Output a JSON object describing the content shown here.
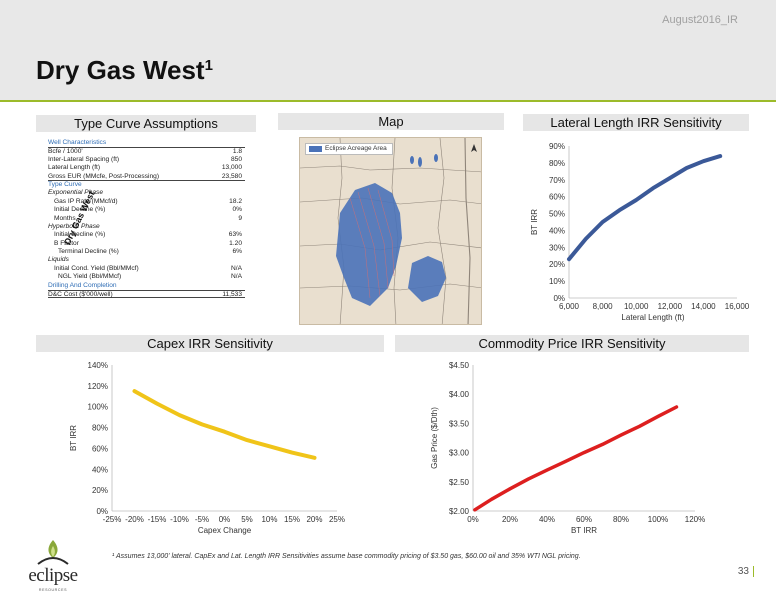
{
  "header": {
    "tag": "August2016_IR",
    "title": "Dry Gas West",
    "title_sup": "1"
  },
  "panels": {
    "assumptions": "Type Curve Assumptions",
    "map": "Map",
    "lateral": "Lateral Length IRR Sensitivity",
    "capex": "Capex IRR Sensitivity",
    "commodity": "Commodity Price IRR Sensitivity"
  },
  "table": [
    {
      "label": "Well Characteristics",
      "value": "",
      "style": "sec"
    },
    {
      "label": "Bcfe / 1000'",
      "value": "1.8",
      "style": "topline"
    },
    {
      "label": "Inter-Lateral Spacing (ft)",
      "value": "850",
      "style": ""
    },
    {
      "label": "Lateral Length (ft)",
      "value": "13,000",
      "style": ""
    },
    {
      "label": "Gross EUR (MMcfe, Post-Processing)",
      "value": "23,580",
      "style": "line"
    },
    {
      "label": "Type Curve",
      "value": "",
      "style": "sec"
    },
    {
      "label": "Exponential Phase",
      "value": "",
      "style": "sub"
    },
    {
      "label": "Gas IP Rate (MMcf/d)",
      "value": "18.2",
      "style": "indent"
    },
    {
      "label": "Initial Decline (%)",
      "value": "0%",
      "style": "indent"
    },
    {
      "label": "Months",
      "value": "9",
      "style": "indent"
    },
    {
      "label": "Hyperbolic Phase",
      "value": "",
      "style": "sub"
    },
    {
      "label": "Initial Decline (%)",
      "value": "63%",
      "style": "indent"
    },
    {
      "label": "B Factor",
      "value": "1.20",
      "style": "indent"
    },
    {
      "label": "Terminal Decline (%)",
      "value": "6%",
      "style": "indent2"
    },
    {
      "label": "Liquids",
      "value": "",
      "style": "sub"
    },
    {
      "label": "Initial Cond. Yield (Bbl/MMcf)",
      "value": "N/A",
      "style": "indent"
    },
    {
      "label": "NGL Yield (Bbl/MMcf)",
      "value": "N/A",
      "style": "indent2"
    },
    {
      "label": "Drilling And Completion",
      "value": "",
      "style": "sec"
    },
    {
      "label": "D&C Cost ($'000/well)",
      "value": "11,533",
      "style": "topline line"
    }
  ],
  "map": {
    "legend": "Eclipse Acreage Area",
    "label": "Dry Gas West"
  },
  "chart_data": [
    {
      "id": "lateral",
      "type": "line",
      "xlabel": "Lateral Length (ft)",
      "ylabel": "BT IRR",
      "x_ticks": [
        "6,000",
        "8,000",
        "10,000",
        "12,000",
        "14,000",
        "16,000"
      ],
      "y_ticks": [
        "0%",
        "10%",
        "20%",
        "30%",
        "40%",
        "50%",
        "60%",
        "70%",
        "80%",
        "90%"
      ],
      "xlim": [
        6000,
        16000
      ],
      "ylim": [
        0,
        90
      ],
      "color": "#3b5998",
      "x": [
        6000,
        7000,
        8000,
        9000,
        10000,
        11000,
        12000,
        13000,
        14000,
        15000
      ],
      "y": [
        23,
        35,
        45,
        52,
        58,
        65,
        71,
        77,
        81,
        84
      ]
    },
    {
      "id": "capex",
      "type": "line",
      "xlabel": "Capex Change",
      "ylabel": "BT IRR",
      "x_ticks": [
        "-25%",
        "-20%",
        "-15%",
        "-10%",
        "-5%",
        "0%",
        "5%",
        "10%",
        "15%",
        "20%",
        "25%"
      ],
      "y_ticks": [
        "0%",
        "20%",
        "40%",
        "60%",
        "80%",
        "100%",
        "120%",
        "140%"
      ],
      "xlim": [
        -25,
        25
      ],
      "ylim": [
        0,
        140
      ],
      "color": "#f0c419",
      "x": [
        -20,
        -15,
        -10,
        -5,
        0,
        5,
        10,
        15,
        20
      ],
      "y": [
        115,
        103,
        92,
        83,
        76,
        68,
        62,
        56,
        51
      ]
    },
    {
      "id": "commodity",
      "type": "line",
      "xlabel": "BT IRR",
      "ylabel": "Gas Price ($/Dth)",
      "x_ticks": [
        "0%",
        "20%",
        "40%",
        "60%",
        "80%",
        "100%",
        "120%"
      ],
      "y_ticks": [
        "$2.00",
        "$2.50",
        "$3.00",
        "$3.50",
        "$4.00",
        "$4.50"
      ],
      "xlim": [
        0,
        120
      ],
      "ylim": [
        2.0,
        4.5
      ],
      "color": "#dd1f1f",
      "x": [
        1,
        10,
        20,
        30,
        40,
        50,
        60,
        70,
        80,
        90,
        100,
        110
      ],
      "y": [
        2.02,
        2.2,
        2.38,
        2.55,
        2.7,
        2.85,
        3.0,
        3.14,
        3.3,
        3.45,
        3.62,
        3.78
      ]
    }
  ],
  "footnote": "¹ Assumes 13,000' lateral. CapEx and Lat. Length IRR Sensitivities assume base commodity pricing of $3.50 gas, $60.00 oil and 35% WTI NGL pricing.",
  "page_number": "33",
  "logo": {
    "name": "eclipse",
    "sub": "RESOURCES"
  }
}
